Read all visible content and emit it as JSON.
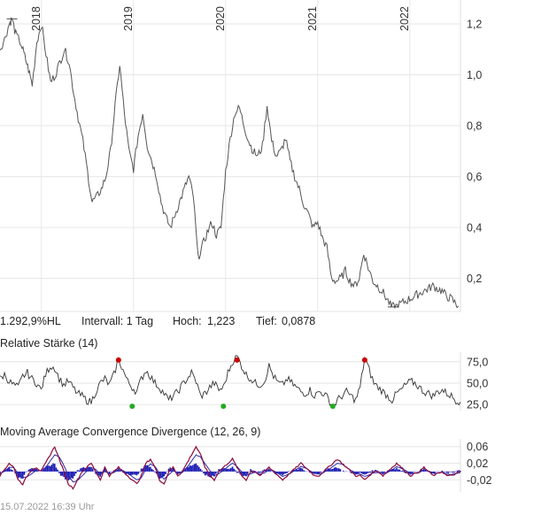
{
  "stats": {
    "change": "1.292,9%HL",
    "interval": "Intervall: 1 Tag",
    "high_label": "Hoch:",
    "high_value": "1,223",
    "low_label": "Tief:",
    "low_value": "0,0878"
  },
  "footer": {
    "timestamp": "15.07.2022 16:39 Uhr"
  },
  "colors": {
    "price": "#555555",
    "grid": "#e6e6e6",
    "macd_line": "#8b0a3c",
    "signal_line": "#2a2aa8",
    "histogram": "#1a1ab4",
    "overbought": "#cc0000",
    "oversold": "#22aa22"
  },
  "chart_data": [
    {
      "type": "line",
      "name": "price",
      "x_axis_labels": [
        "2018",
        "2019",
        "2020",
        "2021",
        "2022"
      ],
      "x_axis_label_dates": [
        2018.0,
        2019.0,
        2020.0,
        2021.0,
        2022.0
      ],
      "y_ticks": [
        "1,2",
        "1,0",
        "0,8",
        "0,6",
        "0,4",
        "0,2"
      ],
      "y_tick_values": [
        1.2,
        1.0,
        0.8,
        0.6,
        0.4,
        0.2
      ],
      "ylim": [
        0.07,
        1.28
      ],
      "xlim": [
        2017.55,
        2022.55
      ],
      "grid": true,
      "series": [
        {
          "x": [
            2017.55,
            2017.6,
            2017.65,
            2017.68,
            2017.72,
            2017.78,
            2017.82,
            2017.86,
            2017.9,
            2017.95,
            2018.0,
            2018.05,
            2018.1,
            2018.15,
            2018.2,
            2018.25,
            2018.3,
            2018.35,
            2018.4,
            2018.45,
            2018.5,
            2018.55,
            2018.6,
            2018.65,
            2018.7,
            2018.75,
            2018.8,
            2018.85,
            2018.9,
            2018.95,
            2019.0,
            2019.05,
            2019.1,
            2019.15,
            2019.2,
            2019.25,
            2019.3,
            2019.35,
            2019.4,
            2019.45,
            2019.5,
            2019.55,
            2019.6,
            2019.65,
            2019.7,
            2019.75,
            2019.8,
            2019.85,
            2019.9,
            2019.95,
            2020.0,
            2020.05,
            2020.1,
            2020.15,
            2020.2,
            2020.25,
            2020.3,
            2020.35,
            2020.4,
            2020.45,
            2020.5,
            2020.55,
            2020.6,
            2020.65,
            2020.7,
            2020.75,
            2020.8,
            2020.85,
            2020.9,
            2020.95,
            2021.0,
            2021.05,
            2021.1,
            2021.15,
            2021.2,
            2021.25,
            2021.3,
            2021.35,
            2021.4,
            2021.45,
            2021.5,
            2021.55,
            2021.6,
            2021.65,
            2021.7,
            2021.75,
            2021.8,
            2021.85,
            2021.9,
            2021.95,
            2022.0,
            2022.05,
            2022.1,
            2022.15,
            2022.2,
            2022.25,
            2022.3,
            2022.35,
            2022.4,
            2022.45,
            2022.5,
            2022.53
          ],
          "y": [
            1.1,
            1.14,
            1.2,
            1.22,
            1.16,
            1.12,
            1.07,
            1.02,
            0.96,
            1.13,
            1.2,
            1.08,
            0.97,
            1.0,
            1.05,
            1.1,
            1.05,
            0.93,
            0.83,
            0.74,
            0.62,
            0.5,
            0.52,
            0.55,
            0.6,
            0.7,
            0.88,
            1.04,
            0.85,
            0.7,
            0.63,
            0.76,
            0.85,
            0.72,
            0.66,
            0.6,
            0.5,
            0.44,
            0.4,
            0.45,
            0.5,
            0.55,
            0.6,
            0.52,
            0.28,
            0.33,
            0.38,
            0.42,
            0.37,
            0.4,
            0.62,
            0.75,
            0.85,
            0.87,
            0.8,
            0.74,
            0.7,
            0.68,
            0.72,
            0.88,
            0.74,
            0.68,
            0.7,
            0.75,
            0.66,
            0.6,
            0.55,
            0.49,
            0.45,
            0.4,
            0.42,
            0.36,
            0.32,
            0.2,
            0.19,
            0.2,
            0.23,
            0.19,
            0.17,
            0.2,
            0.3,
            0.24,
            0.19,
            0.17,
            0.15,
            0.12,
            0.0878,
            0.09,
            0.1,
            0.11,
            0.12,
            0.13,
            0.14,
            0.15,
            0.16,
            0.17,
            0.16,
            0.15,
            0.13,
            0.12,
            0.1,
            0.09
          ]
        }
      ]
    },
    {
      "type": "line",
      "name": "rsi",
      "title": "Relative Stärke (14)",
      "y_ticks": [
        "75,0",
        "50,0",
        "25,0"
      ],
      "y_tick_values": [
        75,
        50,
        25
      ],
      "ylim": [
        20,
        82
      ],
      "series": [
        {
          "y": [
            55,
            60,
            52,
            48,
            45,
            58,
            62,
            55,
            50,
            42,
            60,
            70,
            68,
            55,
            48,
            52,
            45,
            38,
            35,
            30,
            28,
            40,
            50,
            55,
            48,
            60,
            78,
            65,
            52,
            45,
            40,
            55,
            65,
            58,
            50,
            45,
            38,
            30,
            35,
            40,
            48,
            55,
            62,
            52,
            35,
            38,
            45,
            50,
            42,
            45,
            62,
            75,
            82,
            70,
            60,
            55,
            50,
            48,
            52,
            70,
            58,
            50,
            48,
            55,
            50,
            45,
            40,
            38,
            42,
            35,
            40,
            38,
            32,
            22,
            30,
            35,
            40,
            35,
            30,
            45,
            80,
            65,
            50,
            45,
            40,
            35,
            30,
            38,
            42,
            48,
            52,
            50,
            45,
            40,
            38,
            35,
            40,
            42,
            38,
            35,
            30,
            28
          ]
        }
      ],
      "overbought_markers": [
        26,
        52,
        80
      ],
      "oversold_markers": [
        29,
        49,
        73
      ]
    },
    {
      "type": "line",
      "name": "macd",
      "title": "Moving Average Convergence Divergence (12, 26, 9)",
      "y_ticks": [
        "0,06",
        "0,02",
        "-0,02"
      ],
      "y_tick_values": [
        0.06,
        0.02,
        -0.02
      ],
      "ylim": [
        -0.045,
        0.07
      ],
      "series": [
        {
          "name": "MACD",
          "y": [
            -0.01,
            0.005,
            0.02,
            0.01,
            -0.02,
            -0.03,
            -0.01,
            0.005,
            0.01,
            0.0,
            0.02,
            0.04,
            0.06,
            0.03,
            0.0,
            -0.03,
            -0.04,
            -0.02,
            0.0,
            0.01,
            0.02,
            0.0,
            -0.02,
            0.01,
            -0.01,
            0.0,
            0.01,
            0.0,
            -0.01,
            -0.02,
            -0.03,
            -0.01,
            0.02,
            0.03,
            0.01,
            -0.02,
            -0.03,
            0.0,
            0.01,
            -0.01,
            0.0,
            0.02,
            0.04,
            0.06,
            0.04,
            0.01,
            -0.01,
            -0.02,
            0.0,
            0.01,
            0.02,
            0.03,
            0.01,
            -0.01,
            -0.02,
            0.0,
            0.0,
            -0.01,
            0.0,
            0.01,
            0.0,
            -0.01,
            -0.02,
            -0.01,
            0.0,
            0.01,
            0.02,
            0.01,
            0.0,
            -0.01,
            -0.01,
            0.0,
            0.01,
            0.02,
            0.03,
            0.02,
            0.01,
            0.0,
            -0.01,
            -0.01,
            -0.02,
            -0.01,
            0.0,
            0.0,
            -0.01,
            0.0,
            0.01,
            0.02,
            0.01,
            0.0,
            -0.01,
            -0.005,
            0.0,
            0.01,
            0.0,
            -0.01,
            -0.005,
            0.0,
            -0.01,
            -0.01,
            -0.005,
            0.0
          ]
        },
        {
          "name": "Signal",
          "y": [
            -0.005,
            0.0,
            0.01,
            0.01,
            -0.005,
            -0.015,
            -0.012,
            -0.005,
            0.003,
            0.002,
            0.01,
            0.025,
            0.04,
            0.035,
            0.015,
            -0.01,
            -0.025,
            -0.022,
            -0.01,
            0.0,
            0.01,
            0.005,
            -0.008,
            0.0,
            -0.005,
            -0.002,
            0.004,
            0.002,
            -0.004,
            -0.012,
            -0.02,
            -0.015,
            0.005,
            0.018,
            0.012,
            -0.005,
            -0.018,
            -0.008,
            0.002,
            -0.004,
            -0.002,
            0.01,
            0.025,
            0.04,
            0.035,
            0.018,
            0.003,
            -0.01,
            -0.005,
            0.003,
            0.012,
            0.02,
            0.012,
            0.0,
            -0.01,
            -0.005,
            -0.002,
            -0.006,
            -0.003,
            0.004,
            0.002,
            -0.004,
            -0.012,
            -0.008,
            -0.002,
            0.005,
            0.012,
            0.008,
            0.002,
            -0.005,
            -0.006,
            -0.002,
            0.004,
            0.012,
            0.02,
            0.018,
            0.01,
            0.003,
            -0.004,
            -0.006,
            -0.012,
            -0.008,
            -0.003,
            -0.002,
            -0.005,
            -0.002,
            0.004,
            0.012,
            0.008,
            0.002,
            -0.004,
            -0.004,
            -0.002,
            0.004,
            0.001,
            -0.004,
            -0.004,
            -0.002,
            -0.006,
            -0.007,
            -0.005,
            -0.002
          ]
        }
      ]
    }
  ]
}
